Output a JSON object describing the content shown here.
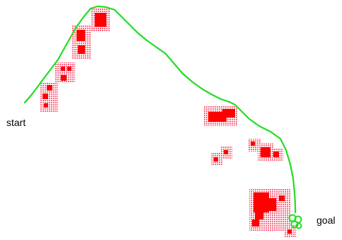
{
  "labels": {
    "start": "start",
    "goal": "goal"
  },
  "colors": {
    "path": "#22dd22",
    "obstacle_core": "#ff0000",
    "obstacle_halo": "#ff4d6a",
    "text": "#000000",
    "background": "#ffffff"
  }
}
